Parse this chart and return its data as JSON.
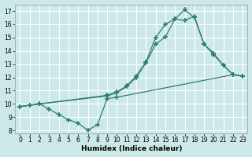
{
  "xlabel": "Humidex (Indice chaleur)",
  "background_color": "#cce8e8",
  "grid_color": "#ffffff",
  "line_color": "#2e7d72",
  "xlim_min": -0.5,
  "xlim_max": 23.5,
  "ylim_min": 7.8,
  "ylim_max": 17.5,
  "xticks": [
    0,
    1,
    2,
    3,
    4,
    5,
    6,
    7,
    8,
    9,
    10,
    11,
    12,
    13,
    14,
    15,
    16,
    17,
    18,
    19,
    20,
    21,
    22,
    23
  ],
  "yticks": [
    8,
    9,
    10,
    11,
    12,
    13,
    14,
    15,
    16,
    17
  ],
  "line1_x": [
    0,
    1,
    2,
    3,
    4,
    5,
    6,
    7,
    8,
    9,
    10,
    22,
    23
  ],
  "line1_y": [
    9.8,
    9.9,
    10.0,
    9.6,
    9.2,
    8.8,
    8.55,
    8.0,
    8.45,
    10.4,
    10.5,
    12.2,
    12.1
  ],
  "line2_x": [
    0,
    1,
    2,
    9,
    10,
    11,
    12,
    13,
    14,
    15,
    16,
    17,
    18,
    19,
    20,
    21,
    22,
    23
  ],
  "line2_y": [
    9.8,
    9.9,
    10.0,
    10.6,
    10.85,
    11.3,
    12.0,
    13.1,
    14.5,
    15.05,
    16.4,
    16.3,
    16.6,
    14.5,
    13.8,
    12.9,
    12.2,
    12.1
  ],
  "line3_x": [
    0,
    9,
    10,
    11,
    12,
    13,
    14,
    15,
    16,
    17,
    18,
    19,
    20,
    21,
    22,
    23
  ],
  "line3_y": [
    9.8,
    10.65,
    10.9,
    11.35,
    12.1,
    13.15,
    15.0,
    16.0,
    16.4,
    17.1,
    16.5,
    14.5,
    13.7,
    12.9,
    12.2,
    12.1
  ]
}
